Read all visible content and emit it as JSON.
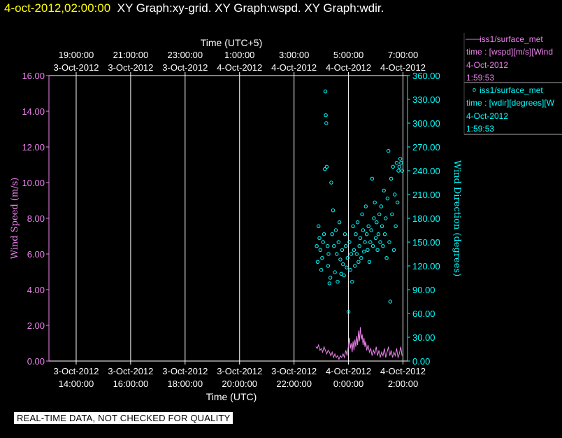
{
  "header": {
    "timestamp": "4-oct-2012,02:00:00",
    "graphs": "XY Graph:xy-grid.  XY Graph:wspd.  XY Graph:wdir."
  },
  "quality_note": "REAL-TIME DATA, NOT CHECKED FOR QUALITY",
  "legend": {
    "wspd": {
      "symbol": "——",
      "source": "iss1/surface_met",
      "variable": "time : [wspd][m/s][Wind",
      "date": "4-Oct-2012",
      "time": "1:59:53"
    },
    "wdir": {
      "symbol": "o",
      "source": "iss1/surface_met",
      "variable": "time : [wdir][degrees][W",
      "date": "4-Oct-2012",
      "time": "1:59:53"
    }
  },
  "colors": {
    "wspd": "#ee82ee",
    "wdir": "#00ffff",
    "grid": "#ffffff",
    "header_time": "#ffff00"
  },
  "chart_data": {
    "type": "scatter",
    "top_axis_title": "Time (UTC+5)",
    "xlabel": "Time (UTC)",
    "ylabel": "Wind Speed (m/s)",
    "y2label": "Wind Direction (degrees)",
    "x_range_utc": [
      "2012-10-03 13:00",
      "2012-10-04 02:10"
    ],
    "grid": "vertical",
    "bottom_ticks": [
      {
        "t": "2012-10-03 14:00",
        "d": "3-Oct-2012",
        "h": "14:00:00"
      },
      {
        "t": "2012-10-03 16:00",
        "d": "3-Oct-2012",
        "h": "16:00:00"
      },
      {
        "t": "2012-10-03 18:00",
        "d": "3-Oct-2012",
        "h": "18:00:00"
      },
      {
        "t": "2012-10-03 20:00",
        "d": "3-Oct-2012",
        "h": "20:00:00"
      },
      {
        "t": "2012-10-03 22:00",
        "d": "3-Oct-2012",
        "h": "22:00:00"
      },
      {
        "t": "2012-10-04 00:00",
        "d": "4-Oct-2012",
        "h": "0:00:00"
      },
      {
        "t": "2012-10-04 02:00",
        "d": "4-Oct-2012",
        "h": "2:00:00"
      }
    ],
    "top_ticks": [
      {
        "t": "2012-10-03 14:00",
        "h": "19:00:00",
        "d": "3-Oct-2012"
      },
      {
        "t": "2012-10-03 16:00",
        "h": "21:00:00",
        "d": "3-Oct-2012"
      },
      {
        "t": "2012-10-03 18:00",
        "h": "23:00:00",
        "d": "3-Oct-2012"
      },
      {
        "t": "2012-10-03 20:00",
        "h": "1:00:00",
        "d": "4-Oct-2012"
      },
      {
        "t": "2012-10-03 22:00",
        "h": "3:00:00",
        "d": "4-Oct-2012"
      },
      {
        "t": "2012-10-04 00:00",
        "h": "5:00:00",
        "d": "4-Oct-2012"
      },
      {
        "t": "2012-10-04 02:00",
        "h": "7:00:00",
        "d": "4-Oct-2012"
      }
    ],
    "y_left": {
      "min": 0,
      "max": 16,
      "ticks": [
        0,
        2,
        4,
        6,
        8,
        10,
        12,
        14,
        16
      ],
      "labels": [
        "0.00",
        "2.00",
        "4.00",
        "6.00",
        "8.00",
        "10.00",
        "12.00",
        "14.00",
        "16.00"
      ]
    },
    "y_right": {
      "min": 0,
      "max": 360,
      "ticks": [
        0,
        30,
        60,
        90,
        120,
        150,
        180,
        210,
        240,
        270,
        300,
        330,
        360
      ],
      "labels": [
        "0.00",
        "30.00",
        "60.00",
        "90.00",
        "120.00",
        "150.00",
        "180.00",
        "210.00",
        "240.00",
        "270.00",
        "300.00",
        "330.00",
        "360.00"
      ]
    },
    "series": [
      {
        "name": "iss1/surface_met wspd",
        "axis": "left",
        "style": "line",
        "points": [
          [
            "2012-10-03 22:48",
            0.8
          ],
          [
            "2012-10-03 22:51",
            0.7
          ],
          [
            "2012-10-03 22:54",
            0.9
          ],
          [
            "2012-10-03 22:57",
            0.6
          ],
          [
            "2012-10-03 23:00",
            0.7
          ],
          [
            "2012-10-03 23:03",
            0.5
          ],
          [
            "2012-10-03 23:06",
            0.8
          ],
          [
            "2012-10-03 23:09",
            0.6
          ],
          [
            "2012-10-03 23:12",
            0.4
          ],
          [
            "2012-10-03 23:15",
            0.6
          ],
          [
            "2012-10-03 23:18",
            0.5
          ],
          [
            "2012-10-03 23:21",
            0.3
          ],
          [
            "2012-10-03 23:24",
            0.5
          ],
          [
            "2012-10-03 23:27",
            0.2
          ],
          [
            "2012-10-03 23:30",
            0.4
          ],
          [
            "2012-10-03 23:33",
            0.2
          ],
          [
            "2012-10-03 23:36",
            0.3
          ],
          [
            "2012-10-03 23:39",
            0.1
          ],
          [
            "2012-10-03 23:42",
            0.3
          ],
          [
            "2012-10-03 23:45",
            0.2
          ],
          [
            "2012-10-03 23:48",
            0.4
          ],
          [
            "2012-10-03 23:51",
            0.2
          ],
          [
            "2012-10-03 23:54",
            0.6
          ],
          [
            "2012-10-03 23:57",
            0.3
          ],
          [
            "2012-10-04 00:00",
            0.9
          ],
          [
            "2012-10-04 00:02",
            1.3
          ],
          [
            "2012-10-04 00:04",
            0.7
          ],
          [
            "2012-10-04 00:06",
            1.0
          ],
          [
            "2012-10-04 00:08",
            0.5
          ],
          [
            "2012-10-04 00:10",
            1.1
          ],
          [
            "2012-10-04 00:12",
            0.6
          ],
          [
            "2012-10-04 00:14",
            1.2
          ],
          [
            "2012-10-04 00:16",
            0.8
          ],
          [
            "2012-10-04 00:18",
            1.4
          ],
          [
            "2012-10-04 00:20",
            0.9
          ],
          [
            "2012-10-04 00:22",
            1.7
          ],
          [
            "2012-10-04 00:24",
            1.1
          ],
          [
            "2012-10-04 00:26",
            1.9
          ],
          [
            "2012-10-04 00:28",
            1.2
          ],
          [
            "2012-10-04 00:30",
            1.5
          ],
          [
            "2012-10-04 00:32",
            0.9
          ],
          [
            "2012-10-04 00:34",
            1.3
          ],
          [
            "2012-10-04 00:36",
            0.8
          ],
          [
            "2012-10-04 00:38",
            1.1
          ],
          [
            "2012-10-04 00:40",
            0.6
          ],
          [
            "2012-10-04 00:43",
            0.9
          ],
          [
            "2012-10-04 00:46",
            0.5
          ],
          [
            "2012-10-04 00:49",
            0.7
          ],
          [
            "2012-10-04 00:52",
            0.3
          ],
          [
            "2012-10-04 00:55",
            0.6
          ],
          [
            "2012-10-04 00:58",
            0.4
          ],
          [
            "2012-10-04 01:01",
            0.8
          ],
          [
            "2012-10-04 01:04",
            0.3
          ],
          [
            "2012-10-04 01:07",
            0.6
          ],
          [
            "2012-10-04 01:10",
            0.2
          ],
          [
            "2012-10-04 01:13",
            0.5
          ],
          [
            "2012-10-04 01:16",
            0.3
          ],
          [
            "2012-10-04 01:19",
            0.7
          ],
          [
            "2012-10-04 01:22",
            0.2
          ],
          [
            "2012-10-04 01:25",
            0.5
          ],
          [
            "2012-10-04 01:28",
            0.8
          ],
          [
            "2012-10-04 01:31",
            0.3
          ],
          [
            "2012-10-04 01:34",
            0.6
          ],
          [
            "2012-10-04 01:37",
            0.2
          ],
          [
            "2012-10-04 01:40",
            0.5
          ],
          [
            "2012-10-04 01:43",
            0.3
          ],
          [
            "2012-10-04 01:46",
            0.7
          ],
          [
            "2012-10-04 01:49",
            0.2
          ],
          [
            "2012-10-04 01:52",
            0.4
          ],
          [
            "2012-10-04 01:55",
            0.8
          ],
          [
            "2012-10-04 01:58",
            0.3
          ]
        ]
      },
      {
        "name": "iss1/surface_met wdir",
        "axis": "right",
        "style": "circle",
        "points": [
          [
            "2012-10-03 22:50",
            145
          ],
          [
            "2012-10-03 22:52",
            125
          ],
          [
            "2012-10-03 22:54",
            170
          ],
          [
            "2012-10-03 22:56",
            155
          ],
          [
            "2012-10-03 22:58",
            140
          ],
          [
            "2012-10-03 23:00",
            115
          ],
          [
            "2012-10-03 23:02",
            130
          ],
          [
            "2012-10-03 23:04",
            150
          ],
          [
            "2012-10-03 23:06",
            160
          ],
          [
            "2012-10-03 23:08",
            242
          ],
          [
            "2012-10-03 23:09",
            340
          ],
          [
            "2012-10-03 23:10",
            310
          ],
          [
            "2012-10-03 23:11",
            300
          ],
          [
            "2012-10-03 23:12",
            245
          ],
          [
            "2012-10-03 23:14",
            145
          ],
          [
            "2012-10-03 23:15",
            120
          ],
          [
            "2012-10-03 23:16",
            135
          ],
          [
            "2012-10-03 23:18",
            98
          ],
          [
            "2012-10-03 23:20",
            105
          ],
          [
            "2012-10-03 23:22",
            225
          ],
          [
            "2012-10-03 23:24",
            160
          ],
          [
            "2012-10-03 23:26",
            190
          ],
          [
            "2012-10-03 23:28",
            145
          ],
          [
            "2012-10-03 23:30",
            112
          ],
          [
            "2012-10-03 23:32",
            165
          ],
          [
            "2012-10-03 23:34",
            135
          ],
          [
            "2012-10-03 23:36",
            100
          ],
          [
            "2012-10-03 23:38",
            150
          ],
          [
            "2012-10-03 23:40",
            175
          ],
          [
            "2012-10-03 23:42",
            128
          ],
          [
            "2012-10-03 23:44",
            110
          ],
          [
            "2012-10-03 23:46",
            140
          ],
          [
            "2012-10-03 23:48",
            122
          ],
          [
            "2012-10-03 23:50",
            108
          ],
          [
            "2012-10-03 23:52",
            160
          ],
          [
            "2012-10-03 23:54",
            145
          ],
          [
            "2012-10-03 23:56",
            118
          ],
          [
            "2012-10-03 23:58",
            130
          ],
          [
            "2012-10-04 00:00",
            62
          ],
          [
            "2012-10-04 00:02",
            150
          ],
          [
            "2012-10-04 00:04",
            115
          ],
          [
            "2012-10-04 00:06",
            135
          ],
          [
            "2012-10-04 00:08",
            100
          ],
          [
            "2012-10-04 00:10",
            170
          ],
          [
            "2012-10-04 00:12",
            140
          ],
          [
            "2012-10-04 00:14",
            120
          ],
          [
            "2012-10-04 00:16",
            160
          ],
          [
            "2012-10-04 00:18",
            135
          ],
          [
            "2012-10-04 00:20",
            175
          ],
          [
            "2012-10-04 00:22",
            125
          ],
          [
            "2012-10-04 00:24",
            145
          ],
          [
            "2012-10-04 00:26",
            155
          ],
          [
            "2012-10-04 00:28",
            130
          ],
          [
            "2012-10-04 00:30",
            185
          ],
          [
            "2012-10-04 00:32",
            165
          ],
          [
            "2012-10-04 00:34",
            138
          ],
          [
            "2012-10-04 00:36",
            150
          ],
          [
            "2012-10-04 00:38",
            195
          ],
          [
            "2012-10-04 00:40",
            160
          ],
          [
            "2012-10-04 00:42",
            140
          ],
          [
            "2012-10-04 00:44",
            170
          ],
          [
            "2012-10-04 00:46",
            125
          ],
          [
            "2012-10-04 00:48",
            150
          ],
          [
            "2012-10-04 00:50",
            165
          ],
          [
            "2012-10-04 00:52",
            230
          ],
          [
            "2012-10-04 00:54",
            145
          ],
          [
            "2012-10-04 00:56",
            180
          ],
          [
            "2012-10-04 00:58",
            200
          ],
          [
            "2012-10-04 01:00",
            155
          ],
          [
            "2012-10-04 01:02",
            175
          ],
          [
            "2012-10-04 01:04",
            140
          ],
          [
            "2012-10-04 01:06",
            160
          ],
          [
            "2012-10-04 01:08",
            185
          ],
          [
            "2012-10-04 01:10",
            150
          ],
          [
            "2012-10-04 01:12",
            195
          ],
          [
            "2012-10-04 01:14",
            170
          ],
          [
            "2012-10-04 01:16",
            145
          ],
          [
            "2012-10-04 01:18",
            215
          ],
          [
            "2012-10-04 01:20",
            160
          ],
          [
            "2012-10-04 01:22",
            180
          ],
          [
            "2012-10-04 01:24",
            130
          ],
          [
            "2012-10-04 01:26",
            205
          ],
          [
            "2012-10-04 01:28",
            265
          ],
          [
            "2012-10-04 01:30",
            150
          ],
          [
            "2012-10-04 01:32",
            75
          ],
          [
            "2012-10-04 01:34",
            230
          ],
          [
            "2012-10-04 01:36",
            185
          ],
          [
            "2012-10-04 01:38",
            245
          ],
          [
            "2012-10-04 01:40",
            140
          ],
          [
            "2012-10-04 01:42",
            210
          ],
          [
            "2012-10-04 01:44",
            170
          ],
          [
            "2012-10-04 01:46",
            250
          ],
          [
            "2012-10-04 01:48",
            200
          ],
          [
            "2012-10-04 01:50",
            240
          ],
          [
            "2012-10-04 01:52",
            245
          ],
          [
            "2012-10-04 01:54",
            255
          ],
          [
            "2012-10-04 01:56",
            250
          ],
          [
            "2012-10-04 01:58",
            240
          ]
        ]
      }
    ]
  }
}
